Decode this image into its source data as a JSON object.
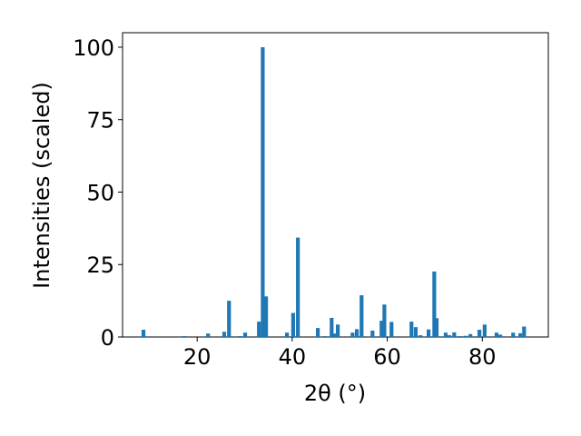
{
  "chart_data": {
    "type": "bar",
    "xlabel": "2θ (°)",
    "ylabel": "Intensities (scaled)",
    "color": "#1f77b4",
    "x": [
      8.7,
      17.3,
      22.3,
      25.7,
      26.7,
      29.0,
      30.1,
      33.0,
      33.8,
      34.5,
      38.9,
      40.2,
      41.2,
      45.4,
      46.9,
      48.3,
      48.8,
      49.6,
      52.7,
      53.6,
      54.6,
      56.9,
      58.8,
      59.4,
      60.9,
      65.1,
      66.0,
      67.0,
      68.7,
      69.9,
      70.4,
      72.3,
      73.1,
      74.1,
      75.4,
      76.5,
      77.5,
      79.4,
      80.5,
      83.0,
      83.8,
      86.5,
      88.0,
      88.8
    ],
    "values": [
      2.5,
      0.3,
      1.2,
      1.8,
      12.5,
      0.3,
      1.5,
      5.3,
      100,
      14,
      1.5,
      8.3,
      34.3,
      3.1,
      0.3,
      6.6,
      1.2,
      4.3,
      1.5,
      2.7,
      14.4,
      2.2,
      5.6,
      11.2,
      5.2,
      5.3,
      3.4,
      0.6,
      2.6,
      22.6,
      6.5,
      1.5,
      0.6,
      1.6,
      0.3,
      0.4,
      1.0,
      2.5,
      4.3,
      1.5,
      0.8,
      1.5,
      1.3,
      3.6
    ],
    "xlim": [
      4.3,
      93.9
    ],
    "xticks": [
      20,
      40,
      60,
      80
    ],
    "ylim": [
      0,
      105
    ],
    "yticks": [
      0,
      25,
      50,
      75,
      100
    ]
  }
}
